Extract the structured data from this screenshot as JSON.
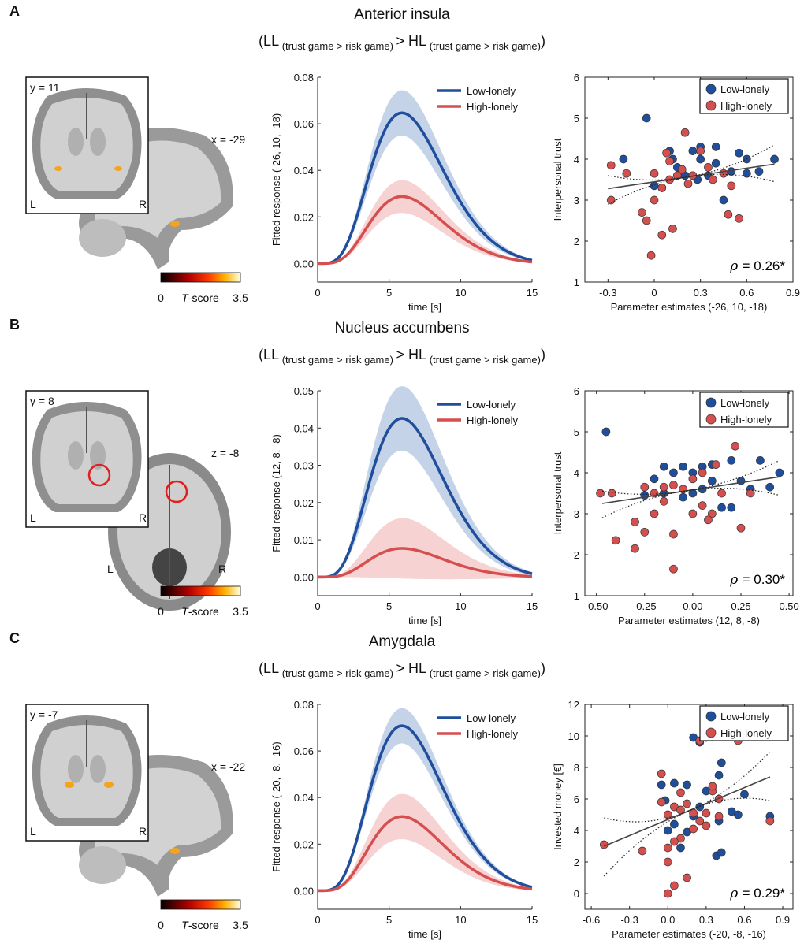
{
  "brain_colorbar": {
    "min_label": "0",
    "max_label": "3.5",
    "label_italic": "T",
    "label_rest": "-score"
  },
  "legend": {
    "low": "Low-lonely",
    "high": "High-lonely"
  },
  "colors": {
    "low": "#1f4e9c",
    "high": "#d64f4f",
    "low_band": "#c5d3e9",
    "high_band": "#f6d2d2",
    "fit_line": "#444444"
  },
  "panels": [
    {
      "label": "A",
      "title": "Anterior insula",
      "contrast": {
        "ll": "(LL",
        "mid": "> HL",
        "close": ")",
        "sub": "(trust game > risk game)"
      },
      "brain": {
        "inset_coord": "y = 11",
        "view_coord": "x = -29",
        "left": "L",
        "right": "R",
        "view_lr": false
      },
      "chart_data": [
        {
          "type": "line",
          "title": "",
          "xlabel": "time [s]",
          "ylabel": "Fitted response (-26, 10, -18)",
          "xlim": [
            0,
            15
          ],
          "ylim": [
            -0.008,
            0.08
          ],
          "xticks": [
            "0",
            "5",
            "10",
            "15"
          ],
          "yticks": [
            "0.00",
            "0.02",
            "0.04",
            "0.06",
            "0.08"
          ],
          "series": [
            {
              "name": "Low-lonely",
              "peak": 0.063,
              "band": 0.009
            },
            {
              "name": "High-lonely",
              "peak": 0.028,
              "band": 0.0065
            }
          ]
        },
        {
          "type": "scatter",
          "xlabel": "Parameter estimates (-26, 10, -18)",
          "ylabel": "Interpersonal trust",
          "xlim": [
            -0.45,
            0.9
          ],
          "ylim": [
            1,
            6
          ],
          "xticks": [
            "-0.3",
            "0",
            "0.3",
            "0.6",
            "0.9"
          ],
          "yticks": [
            "1",
            "2",
            "3",
            "4",
            "5",
            "6"
          ],
          "fit": {
            "x": [
              -0.3,
              0.78
            ],
            "y": [
              3.28,
              3.88
            ],
            "ci_low": [
              2.9,
              3.45
            ],
            "ci_high": [
              3.6,
              4.35
            ]
          },
          "rho_label": "ρ",
          "rho_value": "= 0.26*",
          "series": [
            {
              "name": "Low-lonely",
              "points": [
                [
                  -0.05,
                  5.0
                ],
                [
                  -0.2,
                  4.0
                ],
                [
                  0.1,
                  4.2
                ],
                [
                  0.25,
                  4.2
                ],
                [
                  0.3,
                  4.3
                ],
                [
                  0.4,
                  4.3
                ],
                [
                  0.55,
                  4.15
                ],
                [
                  0.6,
                  4.0
                ],
                [
                  0.78,
                  4.0
                ],
                [
                  0.15,
                  3.8
                ],
                [
                  0.3,
                  4.0
                ],
                [
                  0.4,
                  3.9
                ],
                [
                  0.5,
                  3.7
                ],
                [
                  0.6,
                  3.65
                ],
                [
                  0.0,
                  3.35
                ],
                [
                  0.05,
                  3.3
                ],
                [
                  0.2,
                  3.6
                ],
                [
                  0.45,
                  3.0
                ],
                [
                  0.28,
                  3.5
                ],
                [
                  0.12,
                  4.0
                ],
                [
                  0.68,
                  3.7
                ],
                [
                  0.35,
                  3.6
                ]
              ]
            },
            {
              "name": "High-lonely",
              "points": [
                [
                  -0.28,
                  3.85
                ],
                [
                  -0.18,
                  3.65
                ],
                [
                  -0.28,
                  3.0
                ],
                [
                  0.0,
                  3.0
                ],
                [
                  0.05,
                  3.3
                ],
                [
                  0.1,
                  3.5
                ],
                [
                  0.2,
                  4.65
                ],
                [
                  0.3,
                  4.2
                ],
                [
                  0.35,
                  3.8
                ],
                [
                  0.25,
                  3.6
                ],
                [
                  0.45,
                  3.65
                ],
                [
                  0.5,
                  3.35
                ],
                [
                  0.55,
                  2.55
                ],
                [
                  0.48,
                  2.65
                ],
                [
                  0.08,
                  4.15
                ],
                [
                  0.12,
                  2.3
                ],
                [
                  0.05,
                  2.15
                ],
                [
                  -0.05,
                  2.5
                ],
                [
                  -0.02,
                  1.65
                ],
                [
                  0.0,
                  3.65
                ],
                [
                  0.1,
                  3.95
                ],
                [
                  0.18,
                  3.75
                ],
                [
                  0.22,
                  3.4
                ],
                [
                  -0.08,
                  2.7
                ],
                [
                  0.15,
                  3.6
                ],
                [
                  0.38,
                  3.5
                ]
              ]
            }
          ]
        }
      ]
    },
    {
      "label": "B",
      "title": "Nucleus accumbens",
      "contrast": {
        "ll": "(LL",
        "mid": "> HL",
        "close": ")",
        "sub": "(trust game > risk game)"
      },
      "brain": {
        "inset_coord": "y = 8",
        "view_coord": "z = -8",
        "left": "L",
        "right": "R",
        "view_lr": true
      },
      "chart_data": [
        {
          "type": "line",
          "title": "",
          "xlabel": "time [s]",
          "ylabel": "Fitted response (12, 8, -8)",
          "xlim": [
            0,
            15
          ],
          "ylim": [
            -0.005,
            0.05
          ],
          "xticks": [
            "0",
            "5",
            "10",
            "15"
          ],
          "yticks": [
            "0.00",
            "0.01",
            "0.02",
            "0.03",
            "0.04",
            "0.05"
          ],
          "series": [
            {
              "name": "Low-lonely",
              "peak": 0.0415,
              "band": 0.008
            },
            {
              "name": "High-lonely",
              "peak": 0.0075,
              "band": 0.0075
            }
          ]
        },
        {
          "type": "scatter",
          "xlabel": "Parameter estimates (12, 8, -8)",
          "ylabel": "Interpersonal trust",
          "xlim": [
            -0.56,
            0.52
          ],
          "ylim": [
            1,
            6
          ],
          "xticks": [
            "-0.50",
            "-0.25",
            "0.00",
            "0.25",
            "0.50"
          ],
          "yticks": [
            "1",
            "2",
            "3",
            "4",
            "5",
            "6"
          ],
          "fit": {
            "x": [
              -0.47,
              0.45
            ],
            "y": [
              3.25,
              3.9
            ],
            "ci_low": [
              2.9,
              3.45
            ],
            "ci_high": [
              3.55,
              4.3
            ]
          },
          "rho_label": "ρ",
          "rho_value": "= 0.30*",
          "series": [
            {
              "name": "Low-lonely",
              "points": [
                [
                  -0.45,
                  5.0
                ],
                [
                  -0.15,
                  4.15
                ],
                [
                  -0.05,
                  4.15
                ],
                [
                  0.05,
                  4.15
                ],
                [
                  0.1,
                  4.2
                ],
                [
                  0.2,
                  4.3
                ],
                [
                  0.35,
                  4.3
                ],
                [
                  0.45,
                  4.0
                ],
                [
                  -0.1,
                  4.0
                ],
                [
                  0.0,
                  4.0
                ],
                [
                  -0.2,
                  3.85
                ],
                [
                  0.1,
                  3.8
                ],
                [
                  0.25,
                  3.8
                ],
                [
                  0.3,
                  3.6
                ],
                [
                  -0.15,
                  3.5
                ],
                [
                  -0.25,
                  3.45
                ],
                [
                  0.0,
                  3.5
                ],
                [
                  0.15,
                  3.15
                ],
                [
                  0.2,
                  3.15
                ],
                [
                  0.4,
                  3.65
                ],
                [
                  0.05,
                  3.6
                ],
                [
                  -0.05,
                  3.4
                ]
              ]
            },
            {
              "name": "High-lonely",
              "points": [
                [
                  -0.48,
                  3.5
                ],
                [
                  -0.42,
                  3.5
                ],
                [
                  -0.25,
                  3.65
                ],
                [
                  -0.15,
                  3.65
                ],
                [
                  -0.1,
                  3.7
                ],
                [
                  0.0,
                  3.85
                ],
                [
                  0.05,
                  4.0
                ],
                [
                  0.12,
                  4.2
                ],
                [
                  0.22,
                  4.65
                ],
                [
                  -0.2,
                  3.0
                ],
                [
                  -0.3,
                  2.8
                ],
                [
                  -0.25,
                  2.55
                ],
                [
                  -0.4,
                  2.35
                ],
                [
                  -0.3,
                  2.15
                ],
                [
                  -0.1,
                  2.5
                ],
                [
                  -0.1,
                  1.65
                ],
                [
                  0.0,
                  3.0
                ],
                [
                  0.05,
                  3.2
                ],
                [
                  0.1,
                  3.0
                ],
                [
                  0.25,
                  2.65
                ],
                [
                  -0.05,
                  3.6
                ],
                [
                  0.15,
                  3.5
                ],
                [
                  -0.15,
                  3.3
                ],
                [
                  0.3,
                  3.5
                ],
                [
                  0.08,
                  2.85
                ],
                [
                  -0.2,
                  3.5
                ]
              ]
            }
          ]
        }
      ]
    },
    {
      "label": "C",
      "title": "Amygdala",
      "contrast": {
        "ll": "(LL",
        "mid": "> HL",
        "close": ")",
        "sub": "(trust game > risk game)"
      },
      "brain": {
        "inset_coord": "y = -7",
        "view_coord": "x = -22",
        "left": "L",
        "right": "R",
        "view_lr": false
      },
      "chart_data": [
        {
          "type": "line",
          "title": "",
          "xlabel": "time [s]",
          "ylabel": "Fitted response (-20, -8, -16)",
          "xlim": [
            0,
            15
          ],
          "ylim": [
            -0.008,
            0.08
          ],
          "xticks": [
            "0",
            "5",
            "10",
            "15"
          ],
          "yticks": [
            "0.00",
            "0.02",
            "0.04",
            "0.06",
            "0.08"
          ],
          "series": [
            {
              "name": "Low-lonely",
              "peak": 0.069,
              "band": 0.007
            },
            {
              "name": "High-lonely",
              "peak": 0.031,
              "band": 0.009
            }
          ]
        },
        {
          "type": "scatter",
          "xlabel": "Parameter estimates (-20, -8, -16)",
          "ylabel": "Invested money [€]",
          "xlim": [
            -0.65,
            0.98
          ],
          "ylim": [
            -1,
            12
          ],
          "xticks": [
            "-0.6",
            "-0.3",
            "0.0",
            "0.3",
            "0.6",
            "0.9"
          ],
          "yticks": [
            "0",
            "2",
            "4",
            "6",
            "8",
            "10",
            "12"
          ],
          "fit": {
            "x": [
              -0.5,
              0.8
            ],
            "y": [
              3.0,
              7.4
            ],
            "ci_low": [
              1.1,
              5.9
            ],
            "ci_high": [
              4.8,
              9.0
            ]
          },
          "rho_label": "ρ",
          "rho_value": "= 0.29*",
          "series": [
            {
              "name": "Low-lonely",
              "points": [
                [
                  0.2,
                  9.9
                ],
                [
                  0.25,
                  9.6
                ],
                [
                  0.3,
                  9.9
                ],
                [
                  0.55,
                  10.0
                ],
                [
                  0.52,
                  10.0
                ],
                [
                  0.15,
                  6.9
                ],
                [
                  -0.05,
                  6.9
                ],
                [
                  0.05,
                  7.0
                ],
                [
                  0.42,
                  8.3
                ],
                [
                  0.4,
                  7.5
                ],
                [
                  0.6,
                  6.3
                ],
                [
                  0.8,
                  4.9
                ],
                [
                  0.5,
                  5.2
                ],
                [
                  0.4,
                  4.6
                ],
                [
                  0.2,
                  4.9
                ],
                [
                  0.05,
                  4.4
                ],
                [
                  0.0,
                  4.0
                ],
                [
                  0.38,
                  2.4
                ],
                [
                  0.42,
                  2.6
                ],
                [
                  0.1,
                  2.9
                ],
                [
                  0.25,
                  5.5
                ],
                [
                  0.3,
                  6.5
                ],
                [
                  -0.02,
                  5.9
                ],
                [
                  0.55,
                  5.0
                ],
                [
                  0.15,
                  3.9
                ]
              ]
            },
            {
              "name": "High-lonely",
              "points": [
                [
                  -0.5,
                  3.1
                ],
                [
                  -0.2,
                  2.7
                ],
                [
                  -0.05,
                  7.6
                ],
                [
                  0.1,
                  6.4
                ],
                [
                  0.0,
                  5.0
                ],
                [
                  -0.05,
                  5.8
                ],
                [
                  0.05,
                  5.5
                ],
                [
                  0.1,
                  5.3
                ],
                [
                  0.2,
                  5.1
                ],
                [
                  0.25,
                  4.6
                ],
                [
                  0.3,
                  4.3
                ],
                [
                  0.35,
                  6.5
                ],
                [
                  0.4,
                  6.0
                ],
                [
                  0.55,
                  9.7
                ],
                [
                  0.8,
                  4.6
                ],
                [
                  0.0,
                  2.9
                ],
                [
                  0.0,
                  2.0
                ],
                [
                  0.05,
                  0.5
                ],
                [
                  0.0,
                  0.0
                ],
                [
                  0.15,
                  1.0
                ],
                [
                  0.1,
                  3.5
                ],
                [
                  0.05,
                  3.3
                ],
                [
                  0.2,
                  4.1
                ],
                [
                  0.15,
                  5.7
                ],
                [
                  0.3,
                  5.1
                ],
                [
                  0.35,
                  6.8
                ],
                [
                  0.4,
                  4.9
                ],
                [
                  0.25,
                  9.7
                ]
              ]
            }
          ]
        }
      ]
    }
  ]
}
